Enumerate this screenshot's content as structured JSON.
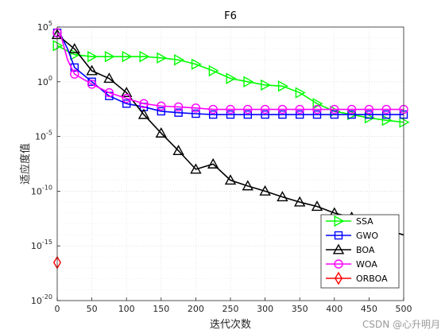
{
  "chart_data": {
    "type": "line",
    "title": "F6",
    "xlabel": "迭代次数",
    "ylabel": "适应度值",
    "xlim": [
      0,
      500
    ],
    "ylim_log10": [
      -20,
      5
    ],
    "yscale": "log",
    "grid": true,
    "x_ticks": [
      0,
      50,
      100,
      150,
      200,
      250,
      300,
      350,
      400,
      450,
      500
    ],
    "y_ticks": [
      {
        "base": "10",
        "exp": "5"
      },
      {
        "base": "10",
        "exp": "0"
      },
      {
        "base": "10",
        "exp": "-5"
      },
      {
        "base": "10",
        "exp": "-10"
      },
      {
        "base": "10",
        "exp": "-15"
      },
      {
        "base": "10",
        "exp": "-20"
      }
    ],
    "legend_position": "bottom-right",
    "series": [
      {
        "name": "SSA",
        "color": "#00ff00",
        "marker": "triangle-right",
        "x": [
          0,
          25,
          50,
          75,
          100,
          125,
          150,
          175,
          200,
          225,
          250,
          275,
          300,
          325,
          350,
          375,
          400,
          425,
          450,
          475,
          500
        ],
        "y": [
          2000.0,
          300,
          200,
          200,
          200,
          200,
          150,
          100,
          40,
          10,
          2,
          1,
          0.5,
          0.4,
          0.1,
          0.01,
          0.002,
          0.001,
          0.0005,
          0.0003,
          0.0002
        ],
        "marker_x": [
          0,
          25,
          50,
          75,
          100,
          125,
          150,
          175,
          200,
          225,
          250,
          275,
          300,
          325,
          350,
          375,
          400,
          425,
          450,
          475,
          500
        ]
      },
      {
        "name": "GWO",
        "color": "#0000ff",
        "marker": "square",
        "x": [
          0,
          5,
          15,
          25,
          50,
          75,
          100,
          125,
          150,
          175,
          200,
          225,
          250,
          275,
          300,
          325,
          350,
          375,
          400,
          425,
          450,
          475,
          500
        ],
        "y": [
          30000.0,
          20000.0,
          1000.0,
          20,
          1,
          0.05,
          0.01,
          0.005,
          0.002,
          0.0015,
          0.0012,
          0.001,
          0.001,
          0.001,
          0.001,
          0.001,
          0.001,
          0.001,
          0.001,
          0.001,
          0.001,
          0.001,
          0.001
        ],
        "marker_x": [
          0,
          25,
          50,
          75,
          100,
          125,
          150,
          175,
          200,
          225,
          250,
          275,
          300,
          325,
          350,
          375,
          400,
          425,
          450,
          475,
          500
        ]
      },
      {
        "name": "BOA",
        "color": "#000000",
        "marker": "triangle-up",
        "x": [
          0,
          25,
          50,
          75,
          100,
          125,
          150,
          175,
          200,
          225,
          250,
          275,
          300,
          325,
          350,
          375,
          400,
          425,
          450,
          475,
          500
        ],
        "y": [
          20000.0,
          1000.0,
          10,
          2,
          0.1,
          0.001,
          2e-05,
          5e-07,
          1e-08,
          3e-08,
          1e-09,
          3e-10,
          1e-10,
          3e-11,
          1e-11,
          4e-12,
          1e-12,
          4e-13,
          1e-13,
          3e-14,
          1e-14
        ],
        "marker_x": [
          0,
          25,
          50,
          75,
          100,
          125,
          150,
          175,
          200,
          225,
          250,
          275,
          300,
          325,
          350,
          375,
          400,
          425,
          450,
          475
        ]
      },
      {
        "name": "WOA",
        "color": "#ff00ff",
        "marker": "circle",
        "x": [
          0,
          5,
          15,
          25,
          50,
          75,
          100,
          125,
          150,
          175,
          200,
          225,
          250,
          275,
          300,
          325,
          350,
          375,
          400,
          425,
          450,
          475,
          500
        ],
        "y": [
          30000.0,
          20000.0,
          100,
          5,
          0.6,
          0.1,
          0.03,
          0.01,
          0.006,
          0.005,
          0.004,
          0.003,
          0.003,
          0.003,
          0.003,
          0.003,
          0.003,
          0.003,
          0.003,
          0.003,
          0.003,
          0.003,
          0.003
        ],
        "marker_x": [
          0,
          25,
          50,
          75,
          100,
          125,
          150,
          175,
          200,
          225,
          250,
          275,
          300,
          325,
          350,
          375,
          400,
          425,
          450,
          475,
          500
        ]
      },
      {
        "name": "ORBOA",
        "color": "#ff0000",
        "marker": "diamond",
        "x": [
          0
        ],
        "y": [
          3e-17
        ],
        "marker_x": [
          0
        ]
      }
    ]
  },
  "watermark": "CSDN @心升明月"
}
